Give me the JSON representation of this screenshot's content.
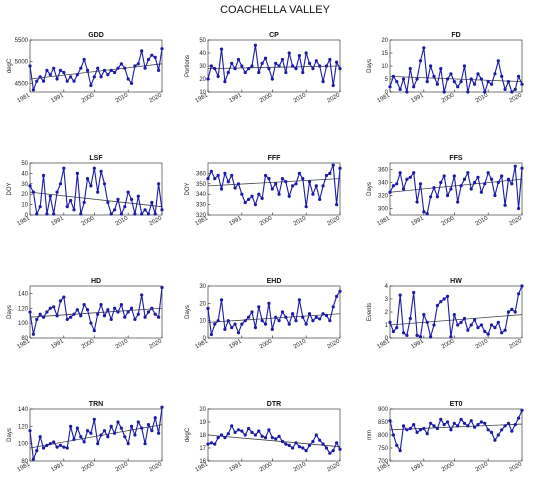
{
  "title": "COACHELLA VALLEY",
  "colors": {
    "series": "#1a1aa6",
    "trend": "#444444",
    "axis": "#222222"
  },
  "chart_data": [
    {
      "type": "line",
      "title": "GDD",
      "ylabel": "degC",
      "ylim": [
        4300,
        5500
      ],
      "yticks": [
        4500,
        5000,
        5500
      ],
      "xlim": [
        1981,
        2020
      ],
      "xticks": [
        1981,
        1991,
        2000,
        2010,
        2020
      ],
      "x": [
        1981,
        1982,
        1983,
        1984,
        1985,
        1986,
        1987,
        1988,
        1989,
        1990,
        1991,
        1992,
        1993,
        1994,
        1995,
        1996,
        1997,
        1998,
        1999,
        2000,
        2001,
        2002,
        2003,
        2004,
        2005,
        2006,
        2007,
        2008,
        2009,
        2010,
        2011,
        2012,
        2013,
        2014,
        2015,
        2016,
        2017,
        2018,
        2019,
        2020
      ],
      "values": [
        4900,
        4350,
        4550,
        4650,
        4550,
        4800,
        4700,
        4850,
        4600,
        4800,
        4750,
        4550,
        4650,
        4550,
        4700,
        4850,
        5050,
        4800,
        4450,
        4650,
        4850,
        4650,
        4800,
        4700,
        4800,
        4750,
        4850,
        4950,
        4850,
        4600,
        4500,
        4900,
        4950,
        5250,
        4850,
        5050,
        5150,
        5100,
        4800,
        5300
      ],
      "trend": [
        4600,
        4950
      ]
    },
    {
      "type": "line",
      "title": "CP",
      "ylabel": "Portions",
      "ylim": [
        10,
        50
      ],
      "yticks": [
        10,
        20,
        30,
        40,
        50
      ],
      "xlim": [
        1981,
        2020
      ],
      "xticks": [
        1981,
        1991,
        2000,
        2010,
        2020
      ],
      "x": [
        1981,
        1982,
        1983,
        1984,
        1985,
        1986,
        1987,
        1988,
        1989,
        1990,
        1991,
        1992,
        1993,
        1994,
        1995,
        1996,
        1997,
        1998,
        1999,
        2000,
        2001,
        2002,
        2003,
        2004,
        2005,
        2006,
        2007,
        2008,
        2009,
        2010,
        2011,
        2012,
        2013,
        2014,
        2015,
        2016,
        2017,
        2018,
        2019,
        2020
      ],
      "values": [
        20,
        30,
        28,
        22,
        43,
        18,
        25,
        32,
        28,
        35,
        30,
        25,
        28,
        30,
        46,
        25,
        32,
        36,
        28,
        20,
        32,
        30,
        35,
        25,
        40,
        30,
        28,
        38,
        25,
        40,
        32,
        28,
        34,
        30,
        18,
        30,
        35,
        15,
        33,
        28
      ],
      "trend": [
        28,
        30
      ]
    },
    {
      "type": "line",
      "title": "FD",
      "ylabel": "Days",
      "ylim": [
        0,
        20
      ],
      "yticks": [
        0,
        5,
        10,
        15,
        20
      ],
      "xlim": [
        1981,
        2020
      ],
      "xticks": [
        1981,
        1991,
        2000,
        2010,
        2020
      ],
      "x": [
        1981,
        1982,
        1983,
        1984,
        1985,
        1986,
        1987,
        1988,
        1989,
        1990,
        1991,
        1992,
        1993,
        1994,
        1995,
        1996,
        1997,
        1998,
        1999,
        2000,
        2001,
        2002,
        2003,
        2004,
        2005,
        2006,
        2007,
        2008,
        2009,
        2010,
        2011,
        2012,
        2013,
        2014,
        2015,
        2016,
        2017,
        2018,
        2019,
        2020
      ],
      "values": [
        2,
        6,
        4,
        1,
        5,
        0,
        9,
        2,
        5,
        12,
        17,
        4,
        10,
        6,
        3,
        9,
        0,
        5,
        7,
        4,
        2,
        4,
        10,
        0,
        5,
        3,
        7,
        5,
        0,
        4,
        3,
        7,
        12,
        6,
        1,
        4,
        0,
        1,
        6,
        3
      ],
      "trend": [
        6,
        4
      ]
    },
    {
      "type": "line",
      "title": "LSF",
      "ylabel": "DOY",
      "ylim": [
        0,
        50
      ],
      "yticks": [
        0,
        10,
        20,
        30,
        40,
        50
      ],
      "xlim": [
        1981,
        2020
      ],
      "xticks": [
        1981,
        1991,
        2000,
        2010,
        2020
      ],
      "x": [
        1981,
        1982,
        1983,
        1984,
        1985,
        1986,
        1987,
        1988,
        1989,
        1990,
        1991,
        1992,
        1993,
        1994,
        1995,
        1996,
        1997,
        1998,
        1999,
        2000,
        2001,
        2002,
        2003,
        2004,
        2005,
        2006,
        2007,
        2008,
        2009,
        2010,
        2011,
        2012,
        2013,
        2014,
        2015,
        2016,
        2017,
        2018,
        2019,
        2020
      ],
      "values": [
        28,
        22,
        1,
        8,
        38,
        1,
        18,
        1,
        22,
        30,
        45,
        8,
        14,
        5,
        40,
        1,
        12,
        35,
        28,
        45,
        22,
        42,
        30,
        12,
        1,
        5,
        15,
        1,
        8,
        22,
        15,
        1,
        18,
        1,
        5,
        1,
        12,
        1,
        30,
        5
      ],
      "trend": [
        22,
        8
      ]
    },
    {
      "type": "line",
      "title": "FFF",
      "ylabel": "DOY",
      "ylim": [
        320,
        370
      ],
      "yticks": [
        320,
        330,
        340,
        350,
        360
      ],
      "xlim": [
        1981,
        2020
      ],
      "xticks": [
        1981,
        1991,
        2000,
        2010,
        2020
      ],
      "x": [
        1981,
        1982,
        1983,
        1984,
        1985,
        1986,
        1987,
        1988,
        1989,
        1990,
        1991,
        1992,
        1993,
        1994,
        1995,
        1996,
        1997,
        1998,
        1999,
        2000,
        2001,
        2002,
        2003,
        2004,
        2005,
        2006,
        2007,
        2008,
        2009,
        2010,
        2011,
        2012,
        2013,
        2014,
        2015,
        2016,
        2017,
        2018,
        2019,
        2020
      ],
      "values": [
        355,
        362,
        355,
        358,
        345,
        360,
        352,
        358,
        346,
        350,
        340,
        332,
        335,
        338,
        330,
        340,
        336,
        358,
        355,
        345,
        350,
        340,
        355,
        352,
        338,
        348,
        350,
        360,
        355,
        328,
        352,
        340,
        348,
        335,
        348,
        358,
        360,
        368,
        330,
        365
      ],
      "trend": [
        348,
        355
      ]
    },
    {
      "type": "line",
      "title": "FFS",
      "ylabel": "Days",
      "ylim": [
        290,
        370
      ],
      "yticks": [
        300,
        320,
        340,
        360
      ],
      "xlim": [
        1981,
        2020
      ],
      "xticks": [
        1981,
        1991,
        2000,
        2010,
        2020
      ],
      "x": [
        1981,
        1982,
        1983,
        1984,
        1985,
        1986,
        1987,
        1988,
        1989,
        1990,
        1991,
        1992,
        1993,
        1994,
        1995,
        1996,
        1997,
        1998,
        1999,
        2000,
        2001,
        2002,
        2003,
        2004,
        2005,
        2006,
        2007,
        2008,
        2009,
        2010,
        2011,
        2012,
        2013,
        2014,
        2015,
        2016,
        2017,
        2018,
        2019,
        2020
      ],
      "values": [
        325,
        335,
        338,
        355,
        330,
        345,
        348,
        355,
        310,
        338,
        295,
        292,
        318,
        332,
        318,
        340,
        350,
        320,
        330,
        350,
        310,
        335,
        345,
        355,
        330,
        340,
        348,
        325,
        338,
        355,
        345,
        320,
        340,
        350,
        305,
        345,
        338,
        365,
        300,
        362
      ],
      "trend": [
        325,
        345
      ]
    },
    {
      "type": "line",
      "title": "HD",
      "ylabel": "Days",
      "ylim": [
        80,
        150
      ],
      "yticks": [
        80,
        100,
        120,
        140
      ],
      "xlim": [
        1981,
        2020
      ],
      "xticks": [
        1981,
        1991,
        2000,
        2010,
        2020
      ],
      "x": [
        1981,
        1982,
        1983,
        1984,
        1985,
        1986,
        1987,
        1988,
        1989,
        1990,
        1991,
        1992,
        1993,
        1994,
        1995,
        1996,
        1997,
        1998,
        1999,
        2000,
        2001,
        2002,
        2003,
        2004,
        2005,
        2006,
        2007,
        2008,
        2009,
        2010,
        2011,
        2012,
        2013,
        2014,
        2015,
        2016,
        2017,
        2018,
        2019,
        2020
      ],
      "values": [
        115,
        85,
        105,
        112,
        108,
        115,
        120,
        122,
        110,
        130,
        135,
        105,
        108,
        112,
        118,
        110,
        125,
        118,
        100,
        90,
        112,
        125,
        110,
        118,
        105,
        120,
        115,
        125,
        108,
        115,
        120,
        105,
        112,
        138,
        108,
        115,
        120,
        112,
        108,
        148
      ],
      "trend": [
        108,
        120
      ]
    },
    {
      "type": "line",
      "title": "EHD",
      "ylabel": "Days",
      "ylim": [
        0,
        30
      ],
      "yticks": [
        0,
        10,
        20,
        30
      ],
      "xlim": [
        1981,
        2020
      ],
      "xticks": [
        1981,
        1991,
        2000,
        2010,
        2020
      ],
      "x": [
        1981,
        1982,
        1983,
        1984,
        1985,
        1986,
        1987,
        1988,
        1989,
        1990,
        1991,
        1992,
        1993,
        1994,
        1995,
        1996,
        1997,
        1998,
        1999,
        2000,
        2001,
        2002,
        2003,
        2004,
        2005,
        2006,
        2007,
        2008,
        2009,
        2010,
        2011,
        2012,
        2013,
        2014,
        2015,
        2016,
        2017,
        2018,
        2019,
        2020
      ],
      "values": [
        17,
        2,
        8,
        10,
        22,
        5,
        10,
        6,
        8,
        3,
        8,
        10,
        12,
        15,
        6,
        18,
        10,
        8,
        20,
        5,
        12,
        10,
        15,
        12,
        8,
        14,
        10,
        22,
        12,
        8,
        14,
        10,
        12,
        11,
        14,
        13,
        10,
        18,
        24,
        27
      ],
      "trend": [
        9,
        14
      ]
    },
    {
      "type": "line",
      "title": "HW",
      "ylabel": "Events",
      "ylim": [
        0,
        4
      ],
      "yticks": [
        0,
        1,
        2,
        3,
        4
      ],
      "xlim": [
        1981,
        2020
      ],
      "xticks": [
        1981,
        1991,
        2000,
        2010,
        2020
      ],
      "x": [
        1981,
        1982,
        1983,
        1984,
        1985,
        1986,
        1987,
        1988,
        1989,
        1990,
        1991,
        1992,
        1993,
        1994,
        1995,
        1996,
        1997,
        1998,
        1999,
        2000,
        2001,
        2002,
        2003,
        2004,
        2005,
        2006,
        2007,
        2008,
        2009,
        2010,
        2011,
        2012,
        2013,
        2014,
        2015,
        2016,
        2017,
        2018,
        2019,
        2020
      ],
      "values": [
        1.2,
        0.5,
        0.8,
        3.3,
        0.4,
        0.2,
        1.5,
        3.5,
        0.2,
        0.1,
        1.8,
        1.2,
        0.1,
        1.0,
        2.5,
        2.8,
        3.0,
        3.2,
        0.1,
        1.8,
        1.0,
        1.2,
        1.5,
        0.6,
        1.0,
        1.4,
        0.8,
        1.0,
        0.5,
        0.3,
        1.0,
        0.8,
        1.2,
        0.4,
        0.6,
        2.0,
        2.2,
        2.0,
        3.4,
        4.0
      ],
      "trend": [
        1.0,
        1.8
      ]
    },
    {
      "type": "line",
      "title": "TRN",
      "ylabel": "Days",
      "ylim": [
        80,
        140
      ],
      "yticks": [
        80,
        100,
        120,
        140
      ],
      "xlim": [
        1981,
        2020
      ],
      "xticks": [
        1981,
        1991,
        2000,
        2010,
        2020
      ],
      "x": [
        1981,
        1982,
        1983,
        1984,
        1985,
        1986,
        1987,
        1988,
        1989,
        1990,
        1991,
        1992,
        1993,
        1994,
        1995,
        1996,
        1997,
        1998,
        1999,
        2000,
        2001,
        2002,
        2003,
        2004,
        2005,
        2006,
        2007,
        2008,
        2009,
        2010,
        2011,
        2012,
        2013,
        2014,
        2015,
        2016,
        2017,
        2018,
        2019,
        2020
      ],
      "values": [
        115,
        82,
        92,
        108,
        95,
        98,
        100,
        102,
        96,
        98,
        96,
        95,
        120,
        105,
        118,
        108,
        102,
        115,
        112,
        128,
        100,
        110,
        115,
        108,
        120,
        112,
        125,
        118,
        108,
        100,
        120,
        110,
        125,
        118,
        100,
        122,
        115,
        130,
        112,
        142
      ],
      "trend": [
        95,
        122
      ]
    },
    {
      "type": "line",
      "title": "DTR",
      "ylabel": "degC",
      "ylim": [
        16,
        20
      ],
      "yticks": [
        16,
        17,
        18,
        19,
        20
      ],
      "xlim": [
        1981,
        2020
      ],
      "xticks": [
        1981,
        1991,
        2000,
        2010,
        2020
      ],
      "x": [
        1981,
        1982,
        1983,
        1984,
        1985,
        1986,
        1987,
        1988,
        1989,
        1990,
        1991,
        1992,
        1993,
        1994,
        1995,
        1996,
        1997,
        1998,
        1999,
        2000,
        2001,
        2002,
        2003,
        2004,
        2005,
        2006,
        2007,
        2008,
        2009,
        2010,
        2011,
        2012,
        2013,
        2014,
        2015,
        2016,
        2017,
        2018,
        2019,
        2020
      ],
      "values": [
        17.3,
        17.4,
        17.3,
        17.8,
        18.0,
        17.8,
        18.1,
        18.7,
        18.2,
        18.4,
        18.3,
        18.0,
        18.5,
        18.2,
        18.0,
        18.3,
        17.9,
        17.8,
        18.4,
        17.8,
        17.7,
        17.9,
        17.5,
        17.3,
        17.2,
        17.0,
        17.4,
        17.1,
        17.0,
        16.8,
        17.2,
        17.5,
        18.0,
        17.6,
        17.3,
        17.0,
        16.6,
        16.8,
        17.4,
        16.9
      ],
      "trend": [
        18.0,
        17.1
      ]
    },
    {
      "type": "line",
      "title": "ET0",
      "ylabel": "mm",
      "ylim": [
        700,
        900
      ],
      "yticks": [
        700,
        750,
        800,
        850,
        900
      ],
      "xlim": [
        1981,
        2020
      ],
      "xticks": [
        1981,
        1991,
        2000,
        2010,
        2020
      ],
      "x": [
        1981,
        1982,
        1983,
        1984,
        1985,
        1986,
        1987,
        1988,
        1989,
        1990,
        1991,
        1992,
        1993,
        1994,
        1995,
        1996,
        1997,
        1998,
        1999,
        2000,
        2001,
        2002,
        2003,
        2004,
        2005,
        2006,
        2007,
        2008,
        2009,
        2010,
        2011,
        2012,
        2013,
        2014,
        2015,
        2016,
        2017,
        2018,
        2019,
        2020
      ],
      "values": [
        855,
        800,
        760,
        740,
        835,
        820,
        825,
        840,
        810,
        820,
        825,
        805,
        845,
        835,
        825,
        860,
        840,
        850,
        820,
        845,
        835,
        860,
        845,
        835,
        855,
        830,
        840,
        850,
        845,
        820,
        810,
        780,
        800,
        820,
        835,
        845,
        815,
        840,
        865,
        895
      ],
      "trend": [
        820,
        842
      ]
    }
  ]
}
